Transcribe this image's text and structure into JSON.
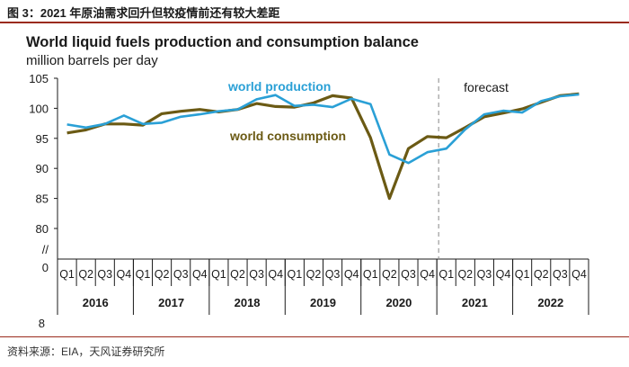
{
  "caption": "图 3：2021 年原油需求回升但较疫情前还有较大差距",
  "source": "资料来源：EIA，天风证券研究所",
  "chart_data": {
    "type": "line",
    "title": "World liquid fuels production and consumption balance",
    "subtitle": "million barrels per day",
    "y_ticks": [
      "105",
      "100",
      "95",
      "90",
      "85",
      "80",
      "//",
      "0"
    ],
    "ylim": [
      80,
      105
    ],
    "stray_label": "8",
    "quarters": [
      "Q1",
      "Q2",
      "Q3",
      "Q4"
    ],
    "years": [
      "2016",
      "2017",
      "2018",
      "2019",
      "2020",
      "2021",
      "2022"
    ],
    "forecast_label": "forecast",
    "forecast_starts_after": "2020 Q4",
    "series": [
      {
        "name": "world production",
        "color": "#2aa0d6",
        "values": [
          97.3,
          96.8,
          97.4,
          98.8,
          97.4,
          97.6,
          98.6,
          99.0,
          99.5,
          99.8,
          101.5,
          102.2,
          100.4,
          100.6,
          100.2,
          101.6,
          100.7,
          92.3,
          90.9,
          92.7,
          93.3,
          96.5,
          99.0,
          99.6,
          99.3,
          101.2,
          102.0,
          102.3
        ]
      },
      {
        "name": "world consumption",
        "color": "#6b5a14",
        "values": [
          95.9,
          96.4,
          97.4,
          97.4,
          97.2,
          99.1,
          99.5,
          99.8,
          99.4,
          99.8,
          100.8,
          100.3,
          100.2,
          100.9,
          102.1,
          101.7,
          95.1,
          85.0,
          93.3,
          95.3,
          95.1,
          96.8,
          98.6,
          99.2,
          99.9,
          101.0,
          102.1,
          102.4
        ]
      }
    ]
  }
}
